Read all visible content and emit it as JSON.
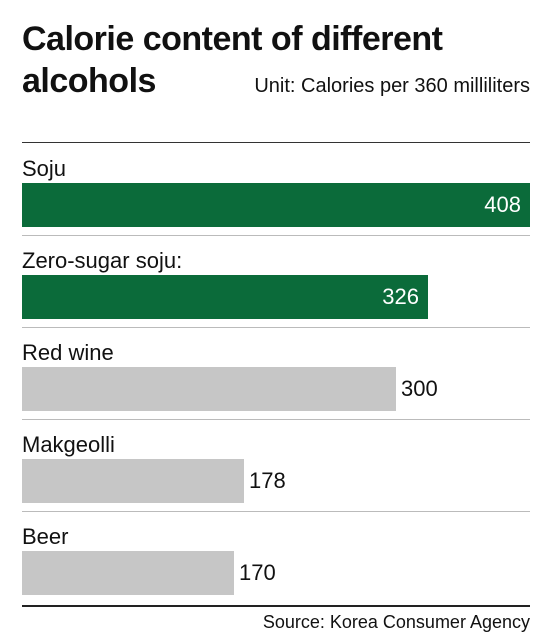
{
  "title": "Calorie content of different alcohols",
  "unit": "Unit: Calories per 360 milliliters",
  "source": "Source: Korea Consumer Agency",
  "colors": {
    "highlight": "#0b6b3a",
    "other": "#c6c6c6"
  },
  "chart_data": {
    "type": "bar",
    "orientation": "horizontal",
    "categories": [
      "Soju",
      "Zero-sugar soju:",
      "Red wine",
      "Makgeolli",
      "Beer"
    ],
    "values": [
      408,
      326,
      300,
      178,
      170
    ],
    "highlighted": [
      true,
      true,
      false,
      false,
      false
    ],
    "xlim": [
      0,
      408
    ],
    "grid": false
  }
}
